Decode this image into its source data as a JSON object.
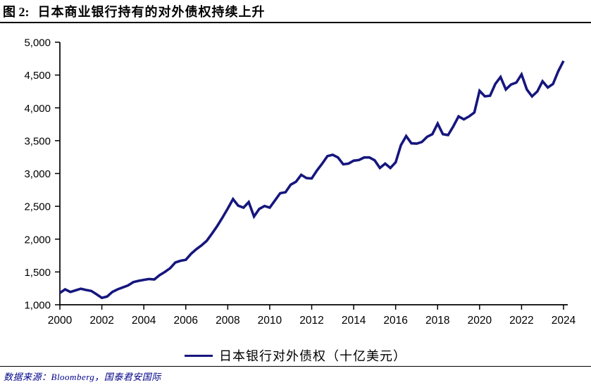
{
  "header": {
    "figure_label": "图 2:",
    "title": "日本商业银行持有的对外债权持续上升"
  },
  "legend": {
    "label": "日本银行对外债权（十亿美元）"
  },
  "footer": {
    "source_text": "数据来源：Bloomberg，国泰君安国际"
  },
  "colors": {
    "line": "#16167E",
    "source_text": "#00008B",
    "axis": "#000000"
  },
  "chart_data": {
    "type": "line",
    "title": "日本商业银行持有的对外债权持续上升",
    "xlabel": "",
    "ylabel": "",
    "grid": "off",
    "legend_position": "bottom-center",
    "xlim": [
      2000,
      2024.2
    ],
    "ylim": [
      1000,
      5000
    ],
    "x_ticks": [
      2000,
      2002,
      2004,
      2006,
      2008,
      2010,
      2012,
      2014,
      2016,
      2018,
      2020,
      2022,
      2024
    ],
    "x_tick_labels": [
      "2000",
      "2002",
      "2004",
      "2006",
      "2008",
      "2010",
      "2012",
      "2014",
      "2016",
      "2018",
      "2020",
      "2022",
      "2024"
    ],
    "y_ticks": [
      1000,
      1500,
      2000,
      2500,
      3000,
      3500,
      4000,
      4500,
      5000
    ],
    "y_tick_labels": [
      "1,000",
      "1,500",
      "2,000",
      "2,500",
      "3,000",
      "3,500",
      "4,000",
      "4,500",
      "5,000"
    ],
    "series": [
      {
        "name": "日本银行对外债权（十亿美元）",
        "unit": "十亿美元",
        "x_start_year": 2000,
        "x_step_years": 0.25,
        "values": [
          1180,
          1235,
          1195,
          1220,
          1245,
          1225,
          1210,
          1160,
          1105,
          1125,
          1195,
          1235,
          1265,
          1295,
          1345,
          1365,
          1380,
          1392,
          1386,
          1450,
          1500,
          1555,
          1645,
          1670,
          1685,
          1775,
          1845,
          1905,
          1975,
          2085,
          2200,
          2330,
          2465,
          2610,
          2510,
          2480,
          2565,
          2345,
          2460,
          2505,
          2480,
          2590,
          2700,
          2715,
          2830,
          2875,
          2980,
          2930,
          2925,
          3045,
          3150,
          3265,
          3285,
          3245,
          3140,
          3150,
          3195,
          3205,
          3245,
          3245,
          3200,
          3085,
          3150,
          3085,
          3170,
          3430,
          3570,
          3460,
          3455,
          3480,
          3560,
          3600,
          3760,
          3600,
          3585,
          3720,
          3870,
          3825,
          3870,
          3930,
          4260,
          4175,
          4185,
          4365,
          4470,
          4280,
          4355,
          4385,
          4510,
          4280,
          4175,
          4250,
          4405,
          4310,
          4365,
          4560,
          4715
        ]
      }
    ]
  }
}
